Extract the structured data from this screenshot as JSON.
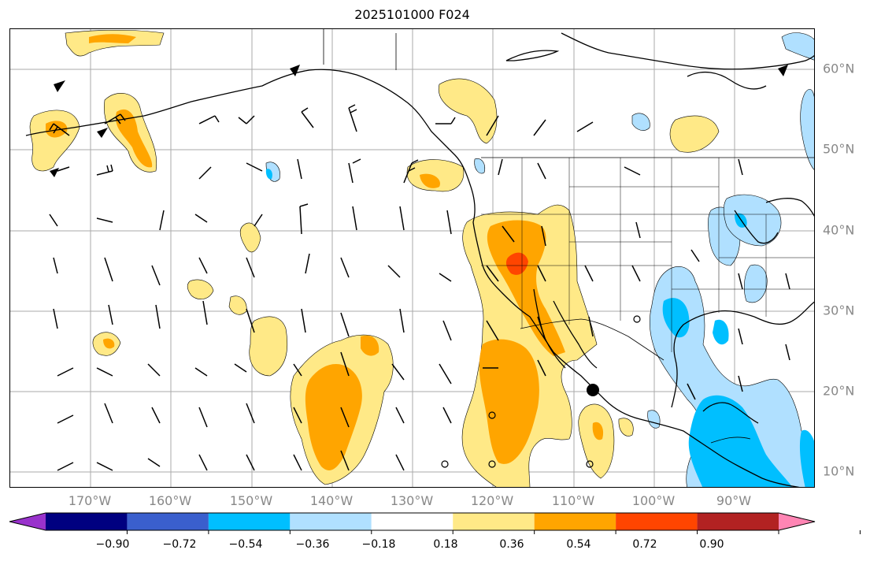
{
  "title": "2025101000 F024",
  "lon_ticks": [
    "170°W",
    "160°W",
    "150°W",
    "140°W",
    "130°W",
    "120°W",
    "110°W",
    "100°W",
    "90°W"
  ],
  "lat_ticks": [
    "60°N",
    "50°N",
    "40°N",
    "30°N",
    "20°N",
    "10°N"
  ],
  "colorbar": {
    "labels": [
      "−0.90",
      "−0.72",
      "−0.54",
      "−0.36",
      "−0.18",
      "0.18",
      "0.36",
      "0.54",
      "0.72",
      "0.90"
    ],
    "colors": [
      "#9932cc",
      "#000080",
      "#3a5fcd",
      "#00bfff",
      "#b0e0ff",
      "#ffffff",
      "#ffe987",
      "#ffa500",
      "#ff4500",
      "#b22222",
      "#ff85b4"
    ]
  },
  "map": {
    "projection": "plate-carree",
    "extent_lon": [
      -180,
      -80
    ],
    "extent_lat": [
      8,
      65
    ],
    "grid": true,
    "features": [
      "coastlines",
      "country borders",
      "state borders",
      "wind barbs",
      "shaded anomaly contours"
    ]
  }
}
